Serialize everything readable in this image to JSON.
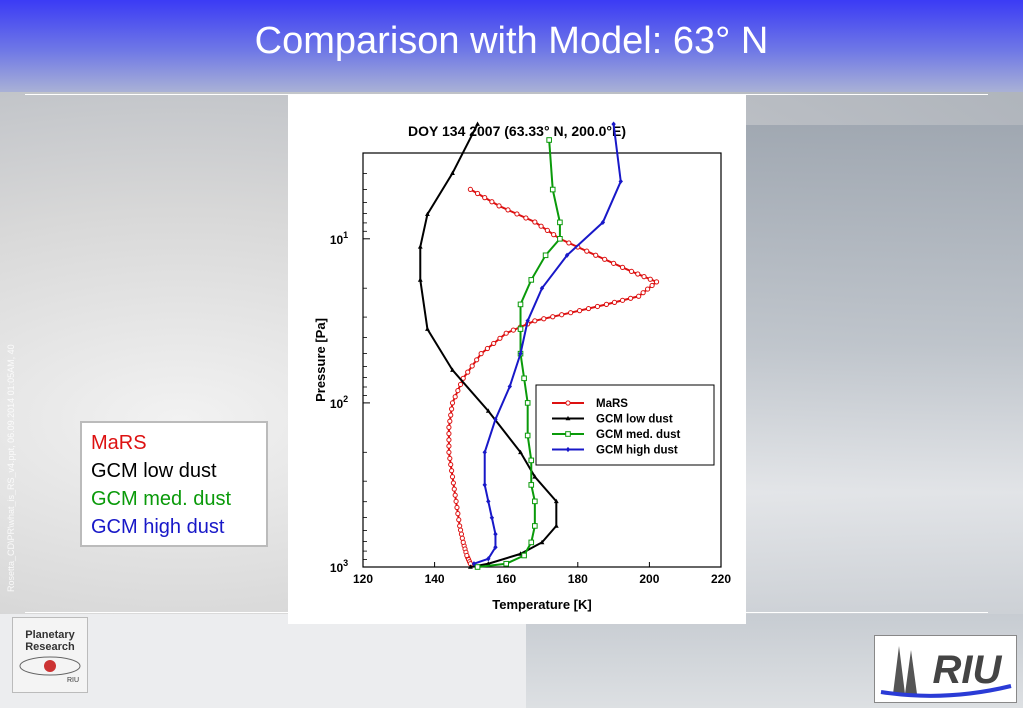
{
  "slide": {
    "title": "Comparison with Model: 63° N",
    "side_text": "Rosetta_CD\\PR\\what_is_RS_v4.ppt, 06.09.2014 01:05AM, 40",
    "legend_box": [
      {
        "label": "MaRS",
        "color": "#dd1111"
      },
      {
        "label": "GCM low dust",
        "color": "#000000"
      },
      {
        "label": "GCM med. dust",
        "color": "#0a9a0a"
      },
      {
        "label": "GCM high dust",
        "color": "#1818c8"
      }
    ],
    "logo_left": {
      "line1": "Planetary",
      "line2": "Research",
      "tag": "RIU"
    },
    "logo_right": {
      "text": "RIU"
    }
  },
  "chart_data": {
    "type": "line",
    "title": "DOY 134 2007 (63.33° N, 200.0°E)",
    "xlabel": "Temperature [K]",
    "ylabel": "Pressure [Pa]",
    "xlim": [
      120,
      220
    ],
    "ylim": [
      1000,
      3
    ],
    "y_scale": "log",
    "x_ticks": [
      "120",
      "140",
      "160",
      "180",
      "200",
      "220"
    ],
    "y_ticks": [
      {
        "value": 10,
        "base": "10",
        "exp": "1"
      },
      {
        "value": 100,
        "base": "10",
        "exp": "2"
      },
      {
        "value": 1000,
        "base": "10",
        "exp": "3"
      }
    ],
    "legend_position": "lower-right",
    "series": [
      {
        "name": "MaRS",
        "color": "#dd1111",
        "marker": "circle",
        "points": [
          [
            150,
            5.0
          ],
          [
            158,
            6.3
          ],
          [
            168,
            7.9
          ],
          [
            175,
            10.0
          ],
          [
            185,
            12.6
          ],
          [
            195,
            15.8
          ],
          [
            202,
            18.3
          ],
          [
            197,
            22.4
          ],
          [
            188,
            25.1
          ],
          [
            178,
            28.2
          ],
          [
            168,
            31.6
          ],
          [
            160,
            37.6
          ],
          [
            153,
            50.1
          ],
          [
            148,
            70.8
          ],
          [
            145,
            100
          ],
          [
            144,
            141
          ],
          [
            144,
            200
          ],
          [
            145,
            282
          ],
          [
            146,
            398
          ],
          [
            147,
            562
          ],
          [
            148,
            708
          ],
          [
            149,
            851
          ],
          [
            150,
            955
          ]
        ]
      },
      {
        "name": "GCM low dust",
        "color": "#000000",
        "marker": "triangle",
        "points": [
          [
            152,
            2.0
          ],
          [
            145,
            3.98
          ],
          [
            138,
            7.08
          ],
          [
            136,
            11.2
          ],
          [
            136,
            17.8
          ],
          [
            138,
            35.5
          ],
          [
            145,
            63.1
          ],
          [
            155,
            112
          ],
          [
            164,
            200
          ],
          [
            168,
            282
          ],
          [
            174,
            398
          ],
          [
            174,
            562
          ],
          [
            170,
            708
          ],
          [
            164,
            832
          ],
          [
            155,
            955
          ],
          [
            150,
            1000
          ]
        ]
      },
      {
        "name": "GCM med. dust",
        "color": "#0a9a0a",
        "marker": "square",
        "points": [
          [
            172,
            2.5
          ],
          [
            173,
            5.01
          ],
          [
            175,
            7.94
          ],
          [
            175,
            10.0
          ],
          [
            171,
            12.6
          ],
          [
            167,
            17.8
          ],
          [
            164,
            25.1
          ],
          [
            164,
            35.5
          ],
          [
            164,
            50.1
          ],
          [
            165,
            70.8
          ],
          [
            166,
            100
          ],
          [
            166,
            158
          ],
          [
            167,
            224
          ],
          [
            167,
            316
          ],
          [
            168,
            398
          ],
          [
            168,
            562
          ],
          [
            167,
            708
          ],
          [
            165,
            851
          ],
          [
            160,
            955
          ],
          [
            152,
            1000
          ]
        ]
      },
      {
        "name": "GCM high dust",
        "color": "#1818c8",
        "marker": "diamond",
        "points": [
          [
            190,
            2.0
          ],
          [
            192,
            4.47
          ],
          [
            187,
            7.94
          ],
          [
            177,
            12.6
          ],
          [
            170,
            20.0
          ],
          [
            166,
            31.6
          ],
          [
            164,
            50.1
          ],
          [
            161,
            79.4
          ],
          [
            157,
            126
          ],
          [
            154,
            200
          ],
          [
            154,
            316
          ],
          [
            155,
            398
          ],
          [
            156,
            501
          ],
          [
            157,
            631
          ],
          [
            157,
            758
          ],
          [
            155,
            891
          ],
          [
            151,
            955
          ]
        ]
      }
    ]
  }
}
